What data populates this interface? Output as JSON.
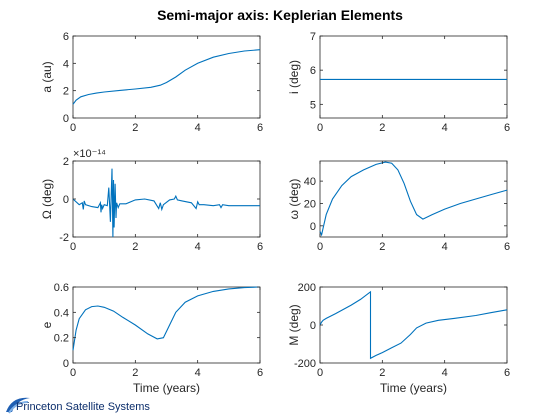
{
  "title": "Semi-major axis: Keplerian Elements",
  "logo_text": "Princeton Satellite Systems",
  "colors": {
    "line": "#0072BD",
    "axes": "#262626",
    "logo": "#0b2d6b"
  },
  "chart_data": [
    {
      "id": "a",
      "type": "line",
      "ylabel": "a (au)",
      "xlabel": "",
      "xlim": [
        0,
        6
      ],
      "ylim": [
        0,
        6
      ],
      "xticks": [
        0,
        2,
        4,
        6
      ],
      "yticks": [
        0,
        2,
        4,
        6
      ],
      "x": [
        0,
        0.1,
        0.25,
        0.5,
        0.75,
        1,
        1.5,
        2,
        2.5,
        2.8,
        3,
        3.3,
        3.6,
        4,
        4.5,
        5,
        5.5,
        6
      ],
      "y": [
        1.0,
        1.3,
        1.55,
        1.72,
        1.82,
        1.9,
        2.02,
        2.12,
        2.25,
        2.4,
        2.6,
        3.0,
        3.5,
        4.0,
        4.45,
        4.72,
        4.9,
        5.0
      ]
    },
    {
      "id": "i",
      "type": "line",
      "ylabel": "i (deg)",
      "xlabel": "",
      "xlim": [
        0,
        6
      ],
      "ylim": [
        4.6,
        7
      ],
      "xticks": [
        0,
        2,
        4,
        6
      ],
      "yticks": [
        5,
        6,
        7
      ],
      "x": [
        0,
        6
      ],
      "y": [
        5.73,
        5.73
      ]
    },
    {
      "id": "Omega",
      "type": "line",
      "ylabel": "Ω (deg)",
      "xlabel": "",
      "exponent": "×10⁻¹⁴",
      "xlim": [
        0,
        6
      ],
      "ylim": [
        -2,
        2
      ],
      "xticks": [
        0,
        2,
        4,
        6
      ],
      "yticks": [
        -2,
        0,
        2
      ],
      "x": [
        0,
        0.2,
        0.3,
        0.33,
        0.36,
        0.4,
        0.6,
        0.8,
        0.88,
        0.9,
        0.92,
        0.95,
        1.0,
        1.1,
        1.15,
        1.2,
        1.25,
        1.28,
        1.3,
        1.32,
        1.35,
        1.38,
        1.4,
        1.45,
        1.5,
        1.7,
        2.0,
        2.3,
        2.6,
        2.75,
        2.8,
        2.85,
        2.9,
        3.1,
        3.25,
        3.3,
        3.35,
        3.5,
        3.8,
        3.95,
        4.0,
        4.05,
        4.2,
        4.5,
        4.7,
        4.75,
        4.8,
        5.0,
        5.5,
        6.0
      ],
      "y": [
        0,
        -0.3,
        -0.2,
        -0.55,
        -0.1,
        -0.3,
        -0.4,
        -0.45,
        -0.2,
        -0.7,
        -0.3,
        -0.5,
        -0.3,
        -0.35,
        0.6,
        -1.2,
        1.6,
        -2.0,
        1.0,
        -1.5,
        0.8,
        -1.0,
        -0.2,
        -0.45,
        -0.25,
        -0.25,
        -0.05,
        0.0,
        -0.1,
        -0.5,
        -0.2,
        -0.55,
        -0.3,
        -0.05,
        0.0,
        0.15,
        -0.05,
        -0.1,
        -0.2,
        -0.5,
        -0.15,
        -0.3,
        -0.3,
        -0.35,
        -0.3,
        -0.45,
        -0.3,
        -0.35,
        -0.35,
        -0.35
      ]
    },
    {
      "id": "omega",
      "type": "line",
      "ylabel": "ω (deg)",
      "xlabel": "",
      "xlim": [
        0,
        6
      ],
      "ylim": [
        -10,
        58
      ],
      "xticks": [
        0,
        2,
        4,
        6
      ],
      "yticks": [
        0,
        20,
        40
      ],
      "x": [
        0,
        0.05,
        0.1,
        0.2,
        0.4,
        0.7,
        1.0,
        1.4,
        1.8,
        2.1,
        2.3,
        2.5,
        2.7,
        2.9,
        3.1,
        3.3,
        3.6,
        4.0,
        4.5,
        5.0,
        5.5,
        6.0
      ],
      "y": [
        -5,
        -8,
        -2,
        10,
        24,
        36,
        44,
        50,
        55,
        57,
        56,
        50,
        38,
        22,
        10,
        6,
        10,
        15,
        20,
        24,
        28,
        32
      ]
    },
    {
      "id": "e",
      "type": "line",
      "ylabel": "e",
      "xlabel": "Time (years)",
      "xlim": [
        0,
        6
      ],
      "ylim": [
        0,
        0.6
      ],
      "xticks": [
        0,
        2,
        4,
        6
      ],
      "yticks": [
        0,
        0.2,
        0.4,
        0.6
      ],
      "x": [
        0,
        0.1,
        0.2,
        0.4,
        0.6,
        0.8,
        1.0,
        1.3,
        1.6,
        2.0,
        2.4,
        2.7,
        2.9,
        3.1,
        3.3,
        3.6,
        4.0,
        4.5,
        5.0,
        5.5,
        6.0
      ],
      "y": [
        0.1,
        0.26,
        0.35,
        0.42,
        0.445,
        0.45,
        0.44,
        0.41,
        0.36,
        0.3,
        0.23,
        0.19,
        0.2,
        0.3,
        0.4,
        0.48,
        0.53,
        0.565,
        0.585,
        0.595,
        0.6
      ]
    },
    {
      "id": "M",
      "type": "line",
      "ylabel": "M (deg)",
      "xlabel": "Time (years)",
      "xlim": [
        0,
        6
      ],
      "ylim": [
        -200,
        200
      ],
      "xticks": [
        0,
        2,
        4,
        6
      ],
      "yticks": [
        -200,
        0,
        200
      ],
      "x": [
        0,
        0.05,
        0.1,
        0.2,
        0.5,
        1.0,
        1.3,
        1.62,
        1.62,
        1.8,
        2.0,
        2.3,
        2.6,
        2.9,
        3.1,
        3.4,
        3.8,
        4.3,
        5.0,
        5.5,
        6.0
      ],
      "y": [
        0,
        15,
        25,
        35,
        60,
        105,
        135,
        175,
        -175,
        -160,
        -145,
        -120,
        -95,
        -50,
        -15,
        10,
        25,
        35,
        50,
        65,
        80
      ]
    }
  ]
}
